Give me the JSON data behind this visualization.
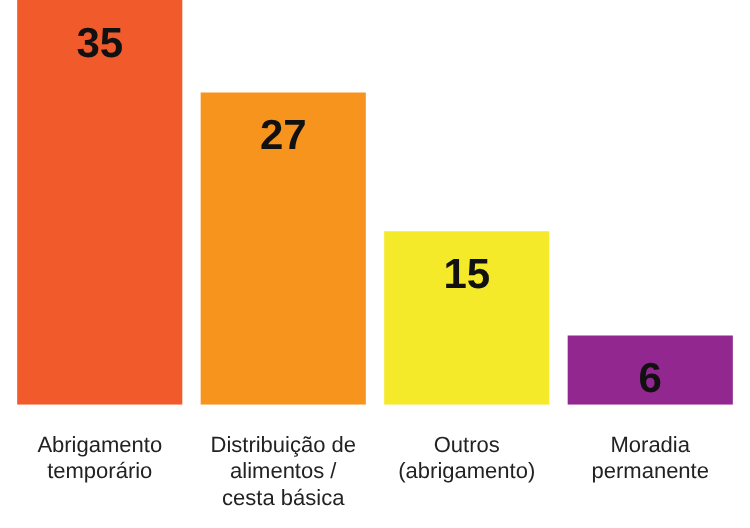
{
  "chart_data": {
    "type": "bar",
    "categories": [
      "Abrigamento temporário",
      "Distribuição de alimentos / cesta básica",
      "Outros (abrigamento)",
      "Moradia permanente"
    ],
    "values": [
      35,
      27,
      15,
      6
    ],
    "colors": [
      "#f15a2b",
      "#f7941d",
      "#f4ea2a",
      "#92278f"
    ],
    "data_labels": true,
    "grid": false,
    "legend": false
  }
}
